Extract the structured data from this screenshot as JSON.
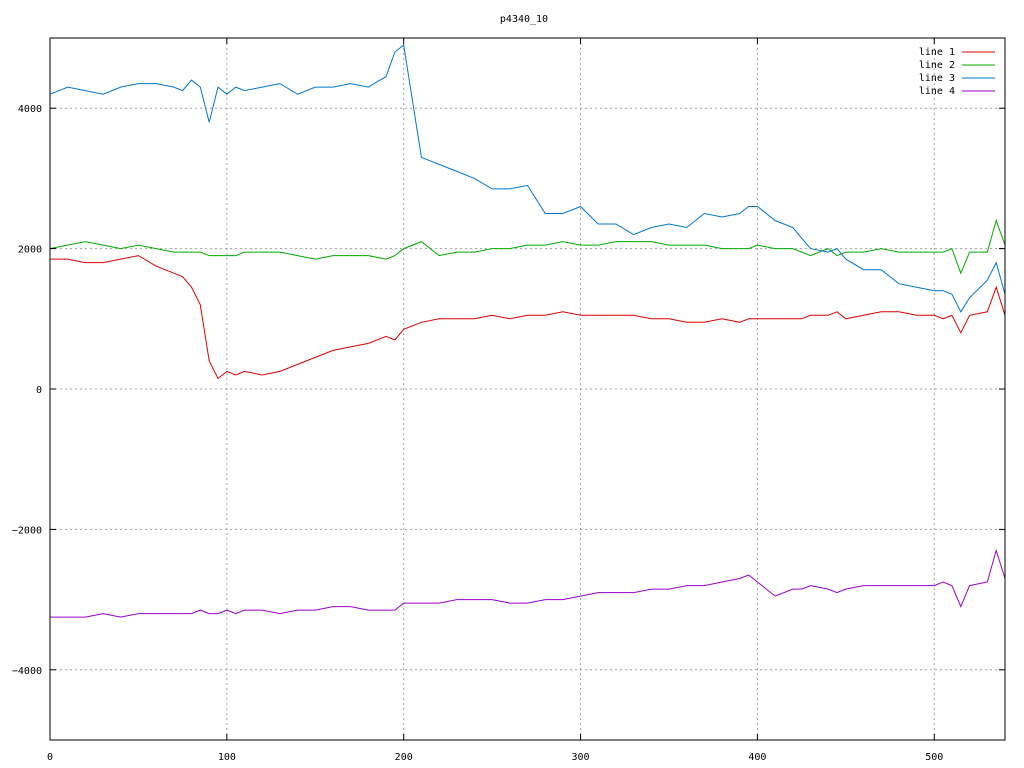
{
  "chart_data": {
    "type": "line",
    "title": "p4340_10",
    "xlabel": "",
    "ylabel": "",
    "xlim": [
      0,
      540
    ],
    "ylim": [
      -5000,
      5000
    ],
    "x_ticks": [
      0,
      100,
      200,
      300,
      400,
      500
    ],
    "y_ticks": [
      -4000,
      -2000,
      0,
      2000,
      4000
    ],
    "grid": true,
    "legend_position": "top-right",
    "x": [
      0,
      10,
      20,
      30,
      40,
      50,
      60,
      70,
      75,
      80,
      85,
      90,
      95,
      100,
      105,
      110,
      120,
      130,
      140,
      150,
      160,
      170,
      180,
      190,
      195,
      200,
      210,
      220,
      230,
      240,
      250,
      260,
      270,
      280,
      290,
      300,
      310,
      320,
      330,
      340,
      350,
      360,
      370,
      380,
      390,
      395,
      400,
      410,
      420,
      425,
      430,
      440,
      445,
      450,
      460,
      470,
      480,
      490,
      500,
      505,
      510,
      515,
      520,
      530,
      535,
      540
    ],
    "series": [
      {
        "name": "line 1",
        "color": "#dd0000",
        "values": [
          1850,
          1850,
          1800,
          1800,
          1850,
          1900,
          1750,
          1650,
          1600,
          1450,
          1200,
          400,
          150,
          250,
          200,
          250,
          200,
          250,
          350,
          450,
          550,
          600,
          650,
          750,
          700,
          850,
          950,
          1000,
          1000,
          1000,
          1050,
          1000,
          1050,
          1050,
          1100,
          1050,
          1050,
          1050,
          1050,
          1000,
          1000,
          950,
          950,
          1000,
          950,
          1000,
          1000,
          1000,
          1000,
          1000,
          1050,
          1050,
          1100,
          1000,
          1050,
          1100,
          1100,
          1050,
          1050,
          1000,
          1050,
          800,
          1050,
          1100,
          1450,
          1050
        ]
      },
      {
        "name": "line 2",
        "color": "#00aa00",
        "values": [
          2000,
          2050,
          2100,
          2050,
          2000,
          2050,
          2000,
          1950,
          1950,
          1950,
          1950,
          1900,
          1900,
          1900,
          1900,
          1950,
          1950,
          1950,
          1900,
          1850,
          1900,
          1900,
          1900,
          1850,
          1900,
          2000,
          2100,
          1900,
          1950,
          1950,
          2000,
          2000,
          2050,
          2050,
          2100,
          2050,
          2050,
          2100,
          2100,
          2100,
          2050,
          2050,
          2050,
          2000,
          2000,
          2000,
          2050,
          2000,
          2000,
          1950,
          1900,
          2000,
          1900,
          1950,
          1950,
          2000,
          1950,
          1950,
          1950,
          1950,
          2000,
          1650,
          1950,
          1950,
          2400,
          2050
        ]
      },
      {
        "name": "line 3",
        "color": "#0077cc",
        "values": [
          4200,
          4300,
          4250,
          4200,
          4300,
          4350,
          4350,
          4300,
          4250,
          4400,
          4300,
          3800,
          4300,
          4200,
          4300,
          4250,
          4300,
          4350,
          4200,
          4300,
          4300,
          4350,
          4300,
          4450,
          4800,
          4900,
          3300,
          3200,
          3100,
          3000,
          2850,
          2850,
          2900,
          2500,
          2500,
          2600,
          2350,
          2350,
          2200,
          2300,
          2350,
          2300,
          2500,
          2450,
          2500,
          2600,
          2600,
          2400,
          2300,
          2150,
          2000,
          1950,
          2000,
          1850,
          1700,
          1700,
          1500,
          1450,
          1400,
          1400,
          1350,
          1100,
          1300,
          1550,
          1800,
          1350
        ]
      },
      {
        "name": "line 4",
        "color": "#9900cc",
        "values": [
          -3250,
          -3250,
          -3250,
          -3200,
          -3250,
          -3200,
          -3200,
          -3200,
          -3200,
          -3200,
          -3150,
          -3200,
          -3200,
          -3150,
          -3200,
          -3150,
          -3150,
          -3200,
          -3150,
          -3150,
          -3100,
          -3100,
          -3150,
          -3150,
          -3150,
          -3050,
          -3050,
          -3050,
          -3000,
          -3000,
          -3000,
          -3050,
          -3050,
          -3000,
          -3000,
          -2950,
          -2900,
          -2900,
          -2900,
          -2850,
          -2850,
          -2800,
          -2800,
          -2750,
          -2700,
          -2650,
          -2750,
          -2950,
          -2850,
          -2850,
          -2800,
          -2850,
          -2900,
          -2850,
          -2800,
          -2800,
          -2800,
          -2800,
          -2800,
          -2750,
          -2800,
          -3100,
          -2800,
          -2750,
          -2300,
          -2700
        ]
      }
    ]
  }
}
